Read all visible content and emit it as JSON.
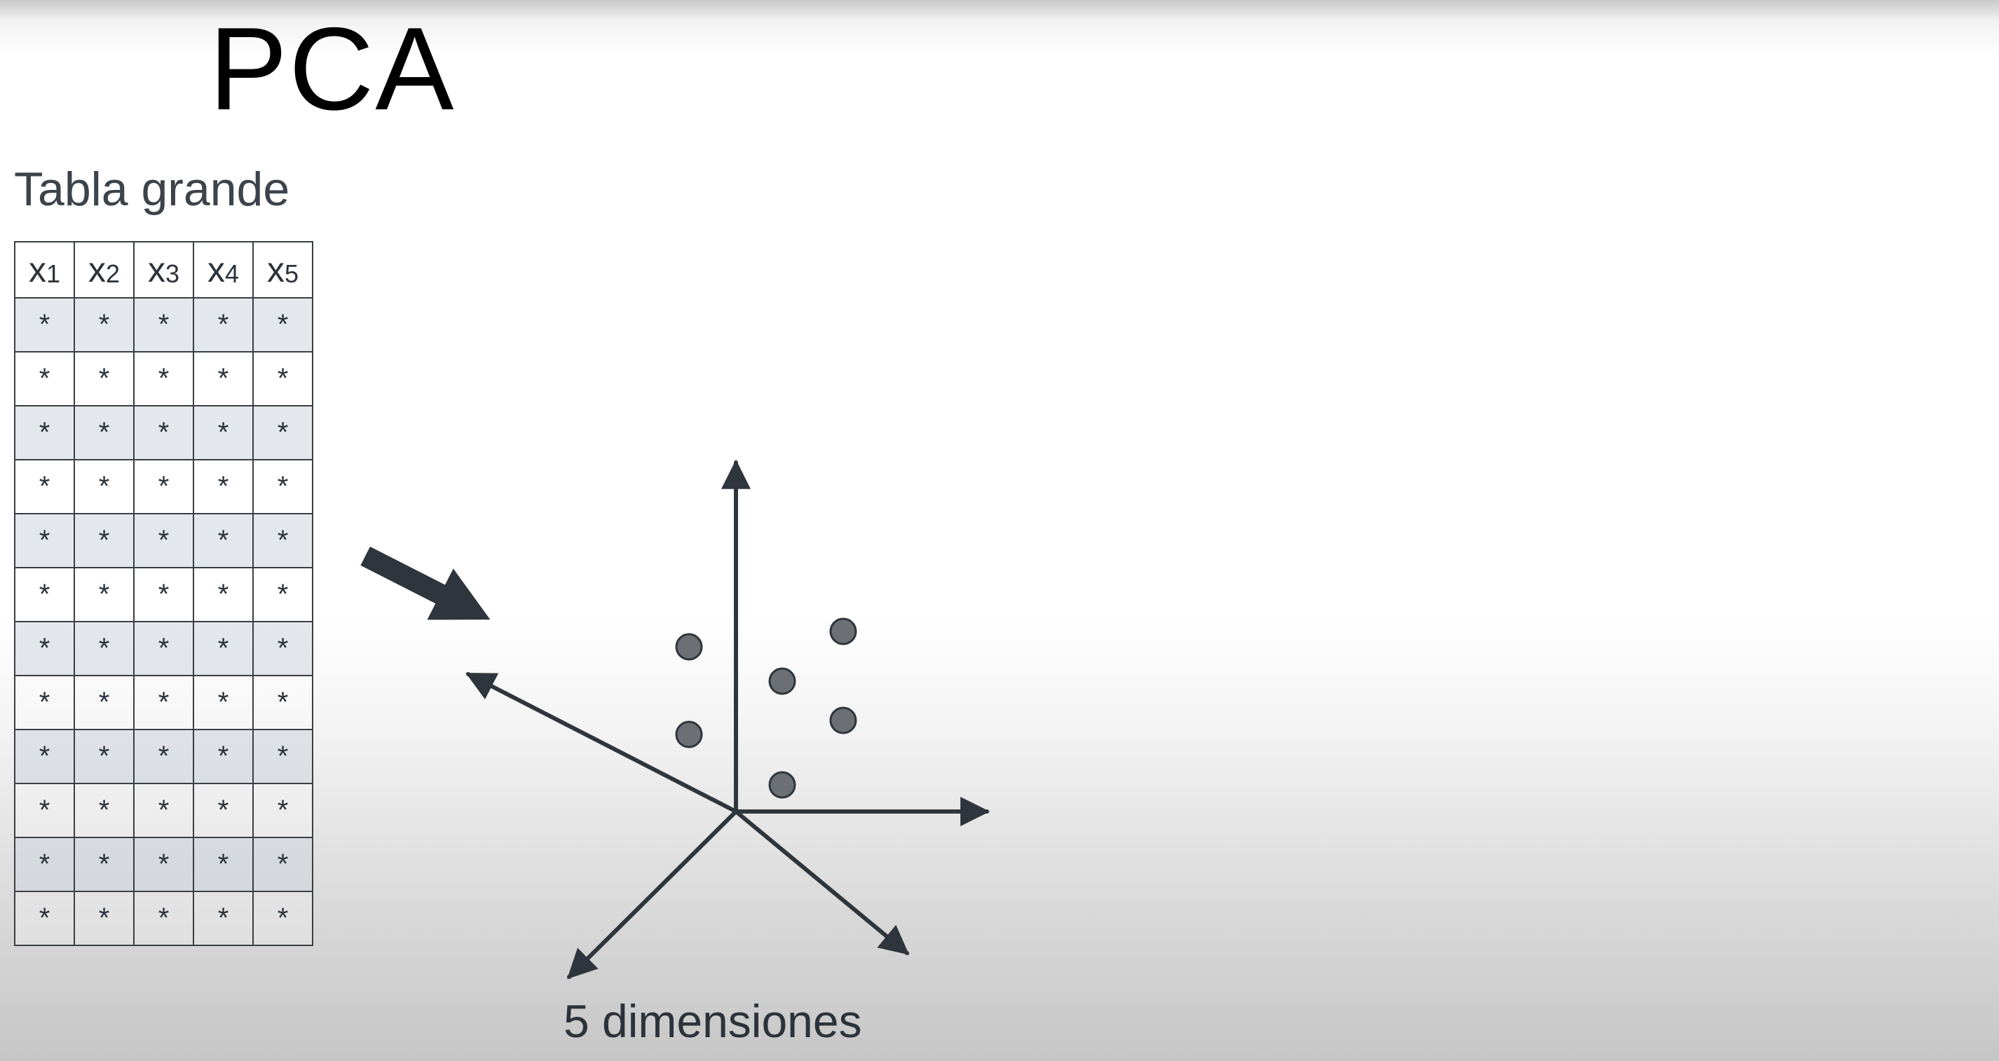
{
  "title": "PCA",
  "table": {
    "caption": "Tabla grande",
    "headers": [
      {
        "base": "x",
        "sub": "1"
      },
      {
        "base": "x",
        "sub": "2"
      },
      {
        "base": "x",
        "sub": "3"
      },
      {
        "base": "x",
        "sub": "4"
      },
      {
        "base": "x",
        "sub": "5"
      }
    ],
    "cell_symbol": "*",
    "row_count": 12
  },
  "diagram": {
    "label": "5 dimensiones",
    "axis_count": 5,
    "point_count": 6,
    "colors": {
      "ink": "#2e353d",
      "point_fill": "#6c7075"
    }
  }
}
